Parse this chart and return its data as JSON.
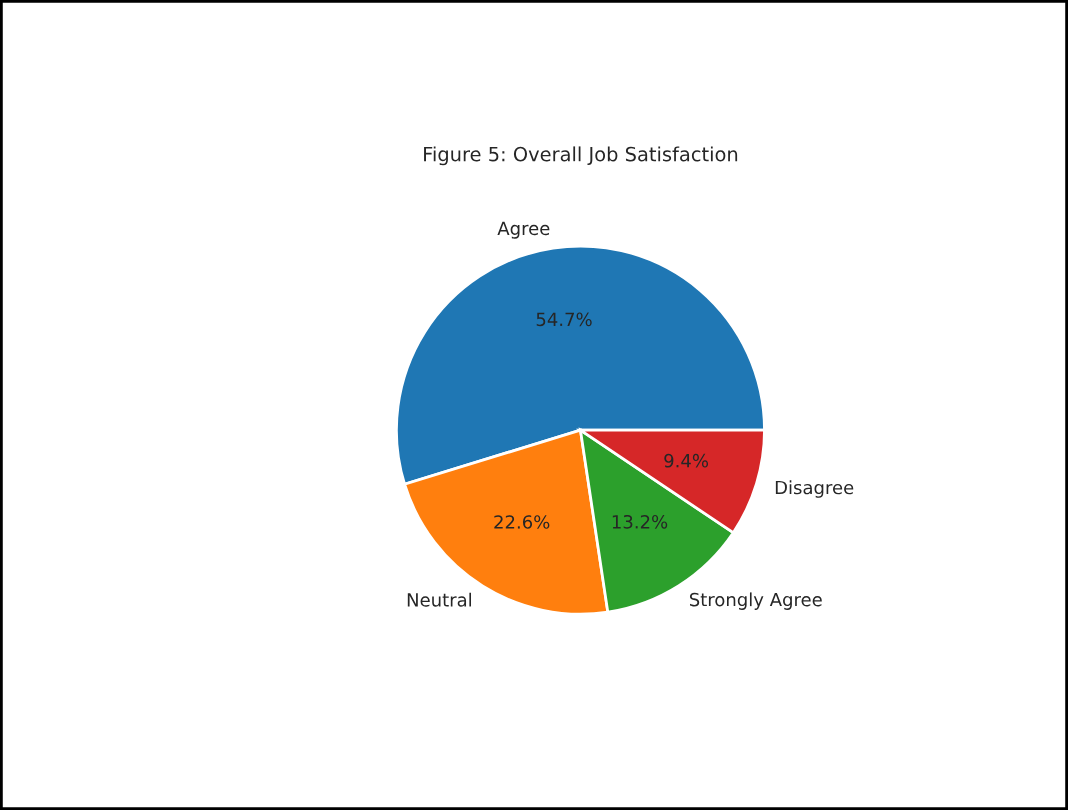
{
  "chart_data": {
    "type": "pie",
    "title": "Figure 5: Overall Job Satisfaction",
    "categories": [
      "Agree",
      "Neutral",
      "Strongly Agree",
      "Disagree"
    ],
    "values": [
      54.7,
      22.6,
      13.2,
      9.4
    ],
    "value_labels": [
      "54.7%",
      "22.6%",
      "13.2%",
      "9.4%"
    ],
    "colors": [
      "#1f77b4",
      "#ff7f0e",
      "#2ca02c",
      "#d62728"
    ]
  }
}
